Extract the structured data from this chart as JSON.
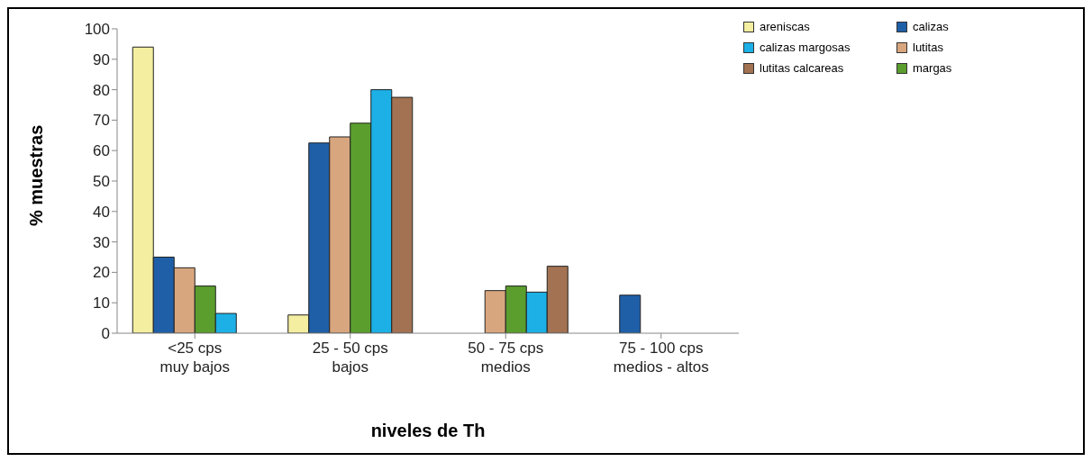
{
  "chart_data": {
    "type": "bar",
    "xlabel": "niveles de Th",
    "ylabel": "% muestras",
    "categories": [
      "<25 cps\nmuy bajos",
      "25 - 50 cps\nbajos",
      "50 - 75 cps\nmedios",
      "75 - 100 cps\nmedios - altos"
    ],
    "series": [
      {
        "name": "areniscas",
        "color": "#f3eea0",
        "values": [
          94,
          6,
          null,
          null
        ]
      },
      {
        "name": "calizas",
        "color": "#1f5fa8",
        "values": [
          25,
          62.5,
          null,
          12.5
        ]
      },
      {
        "name": "lutitas",
        "color": "#d8a67e",
        "values": [
          21.5,
          64.5,
          14,
          null
        ]
      },
      {
        "name": "margas",
        "color": "#5b9e2e",
        "values": [
          15.5,
          69,
          15.5,
          null
        ]
      },
      {
        "name": "calizas margosas",
        "color": "#1cb0e6",
        "values": [
          6.5,
          80,
          13.5,
          null
        ]
      },
      {
        "name": "lutitas calcareas",
        "color": "#a27252",
        "values": [
          null,
          77.5,
          22,
          null
        ]
      }
    ],
    "ylim": [
      0,
      100
    ],
    "yticks": [
      0,
      10,
      20,
      30,
      40,
      50,
      60,
      70,
      80,
      90,
      100
    ],
    "grid": false,
    "legend": "top right"
  }
}
